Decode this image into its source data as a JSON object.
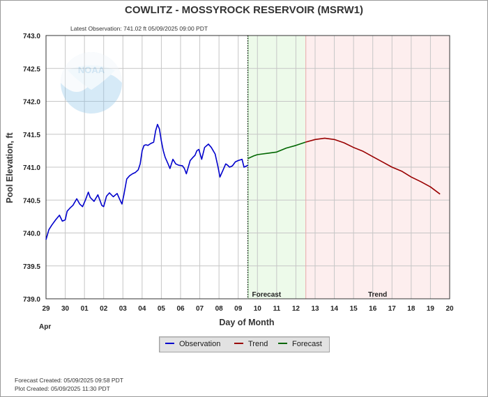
{
  "header": {
    "title": "COWLITZ - MOSSYROCK RESERVOIR  (MSRW1)",
    "latest_observation": "Latest Observation: 741.02 ft 05/09/2025 09:00 PDT"
  },
  "footer": {
    "forecast_created": "Forecast Created: 05/09/2025 09:58 PDT",
    "plot_created": "Plot Created: 05/09/2025 11:30 PDT"
  },
  "colors": {
    "observation": "#0000cc",
    "trend": "#990000",
    "forecast": "#006600",
    "forecast_zone": "#edfaea",
    "trend_zone": "#fdeeee"
  },
  "chart_data": {
    "type": "line",
    "xlabel": "Day of Month",
    "ylabel": "Pool Elevation, ft",
    "x_unit": "day",
    "month_label": "Apr",
    "xlim": [
      0,
      21
    ],
    "ylim": [
      739.0,
      743.0
    ],
    "grid": true,
    "legend_position": "bottom-center",
    "x_ticks": [
      "29",
      "30",
      "01",
      "02",
      "03",
      "04",
      "05",
      "06",
      "07",
      "08",
      "09",
      "10",
      "11",
      "12",
      "13",
      "14",
      "15",
      "16",
      "17",
      "18",
      "19",
      "20"
    ],
    "y_ticks": [
      "739.0",
      "739.5",
      "740.0",
      "740.5",
      "741.0",
      "741.5",
      "742.0",
      "742.5",
      "743.0"
    ],
    "zones": [
      {
        "label": "Forecast",
        "from": 10.5,
        "to": 13.5
      },
      {
        "label": "Trend",
        "from": 13.5,
        "to": 21
      }
    ],
    "now_x": 10.5,
    "series": [
      {
        "name": "Observation",
        "x": [
          0,
          0.15,
          0.3,
          0.5,
          0.7,
          0.85,
          1.0,
          1.1,
          1.25,
          1.4,
          1.6,
          1.75,
          1.9,
          2.05,
          2.2,
          2.3,
          2.5,
          2.7,
          2.9,
          3.0,
          3.15,
          3.3,
          3.5,
          3.7,
          3.85,
          3.95,
          4.05,
          4.2,
          4.35,
          4.5,
          4.65,
          4.8,
          4.9,
          5.0,
          5.1,
          5.2,
          5.3,
          5.45,
          5.6,
          5.7,
          5.8,
          5.9,
          6.0,
          6.1,
          6.2,
          6.35,
          6.45,
          6.6,
          6.75,
          6.9,
          7.1,
          7.2,
          7.3,
          7.5,
          7.65,
          7.75,
          7.85,
          7.95,
          8.1,
          8.25,
          8.45,
          8.6,
          8.8,
          8.95,
          9.05,
          9.2,
          9.35,
          9.45,
          9.55,
          9.7,
          9.85,
          10.0,
          10.2,
          10.3,
          10.45,
          10.5
        ],
        "y": [
          739.9,
          740.05,
          740.12,
          740.2,
          740.27,
          740.18,
          740.2,
          740.33,
          740.38,
          740.42,
          740.52,
          740.44,
          740.4,
          740.5,
          740.62,
          740.54,
          740.48,
          740.58,
          740.42,
          740.4,
          740.56,
          740.61,
          740.55,
          740.6,
          740.5,
          740.44,
          740.58,
          740.82,
          740.87,
          740.9,
          740.92,
          740.96,
          741.05,
          741.25,
          741.33,
          741.34,
          741.33,
          741.36,
          741.38,
          741.55,
          741.65,
          741.58,
          741.4,
          741.25,
          741.15,
          741.05,
          740.98,
          741.12,
          741.05,
          741.03,
          741.02,
          740.98,
          740.9,
          741.1,
          741.15,
          741.18,
          741.25,
          741.27,
          741.12,
          741.3,
          741.35,
          741.3,
          741.2,
          741.0,
          740.85,
          740.95,
          741.05,
          741.03,
          741.0,
          741.02,
          741.08,
          741.1,
          741.12,
          741.0,
          741.02,
          741.03
        ]
      },
      {
        "name": "Forecast",
        "x": [
          10.5,
          10.8,
          11.0,
          11.5,
          12.0,
          12.5,
          13.0,
          13.5
        ],
        "y": [
          741.13,
          741.17,
          741.19,
          741.21,
          741.23,
          741.29,
          741.33,
          741.38
        ]
      },
      {
        "name": "Trend",
        "x": [
          13.5,
          14.0,
          14.5,
          15.0,
          15.5,
          16.0,
          16.5,
          17.0,
          17.5,
          18.0,
          18.5,
          19.0,
          19.5,
          20.0,
          20.5
        ],
        "y": [
          741.38,
          741.42,
          741.44,
          741.42,
          741.37,
          741.3,
          741.24,
          741.16,
          741.08,
          741.0,
          740.94,
          740.85,
          740.78,
          740.7,
          740.59
        ]
      }
    ]
  }
}
